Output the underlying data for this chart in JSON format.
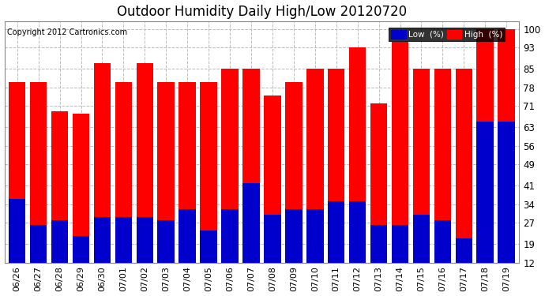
{
  "title": "Outdoor Humidity Daily High/Low 20120720",
  "copyright": "Copyright 2012 Cartronics.com",
  "dates": [
    "06/26",
    "06/27",
    "06/28",
    "06/29",
    "06/30",
    "07/01",
    "07/02",
    "07/03",
    "07/04",
    "07/05",
    "07/06",
    "07/07",
    "07/08",
    "07/09",
    "07/10",
    "07/11",
    "07/12",
    "07/13",
    "07/14",
    "07/15",
    "07/16",
    "07/17",
    "07/18",
    "07/19"
  ],
  "high": [
    80,
    80,
    69,
    68,
    87,
    80,
    87,
    80,
    80,
    80,
    85,
    85,
    75,
    80,
    85,
    85,
    93,
    72,
    95,
    85,
    85,
    85,
    100,
    100
  ],
  "low": [
    36,
    26,
    28,
    22,
    29,
    29,
    29,
    28,
    32,
    24,
    32,
    42,
    30,
    32,
    32,
    35,
    35,
    26,
    26,
    30,
    28,
    21,
    65,
    65
  ],
  "high_color": "#ff0000",
  "low_color": "#0000cc",
  "bg_color": "#ffffff",
  "plot_bg_color": "#ffffff",
  "grid_color": "#bbbbbb",
  "yticks": [
    12,
    19,
    27,
    34,
    41,
    49,
    56,
    63,
    71,
    78,
    85,
    93,
    100
  ],
  "ymin": 12,
  "ymax": 103,
  "bar_width": 0.8,
  "title_fontsize": 12,
  "tick_fontsize": 8.5,
  "legend_label_low": "Low  (%)",
  "legend_label_high": "High  (%)"
}
